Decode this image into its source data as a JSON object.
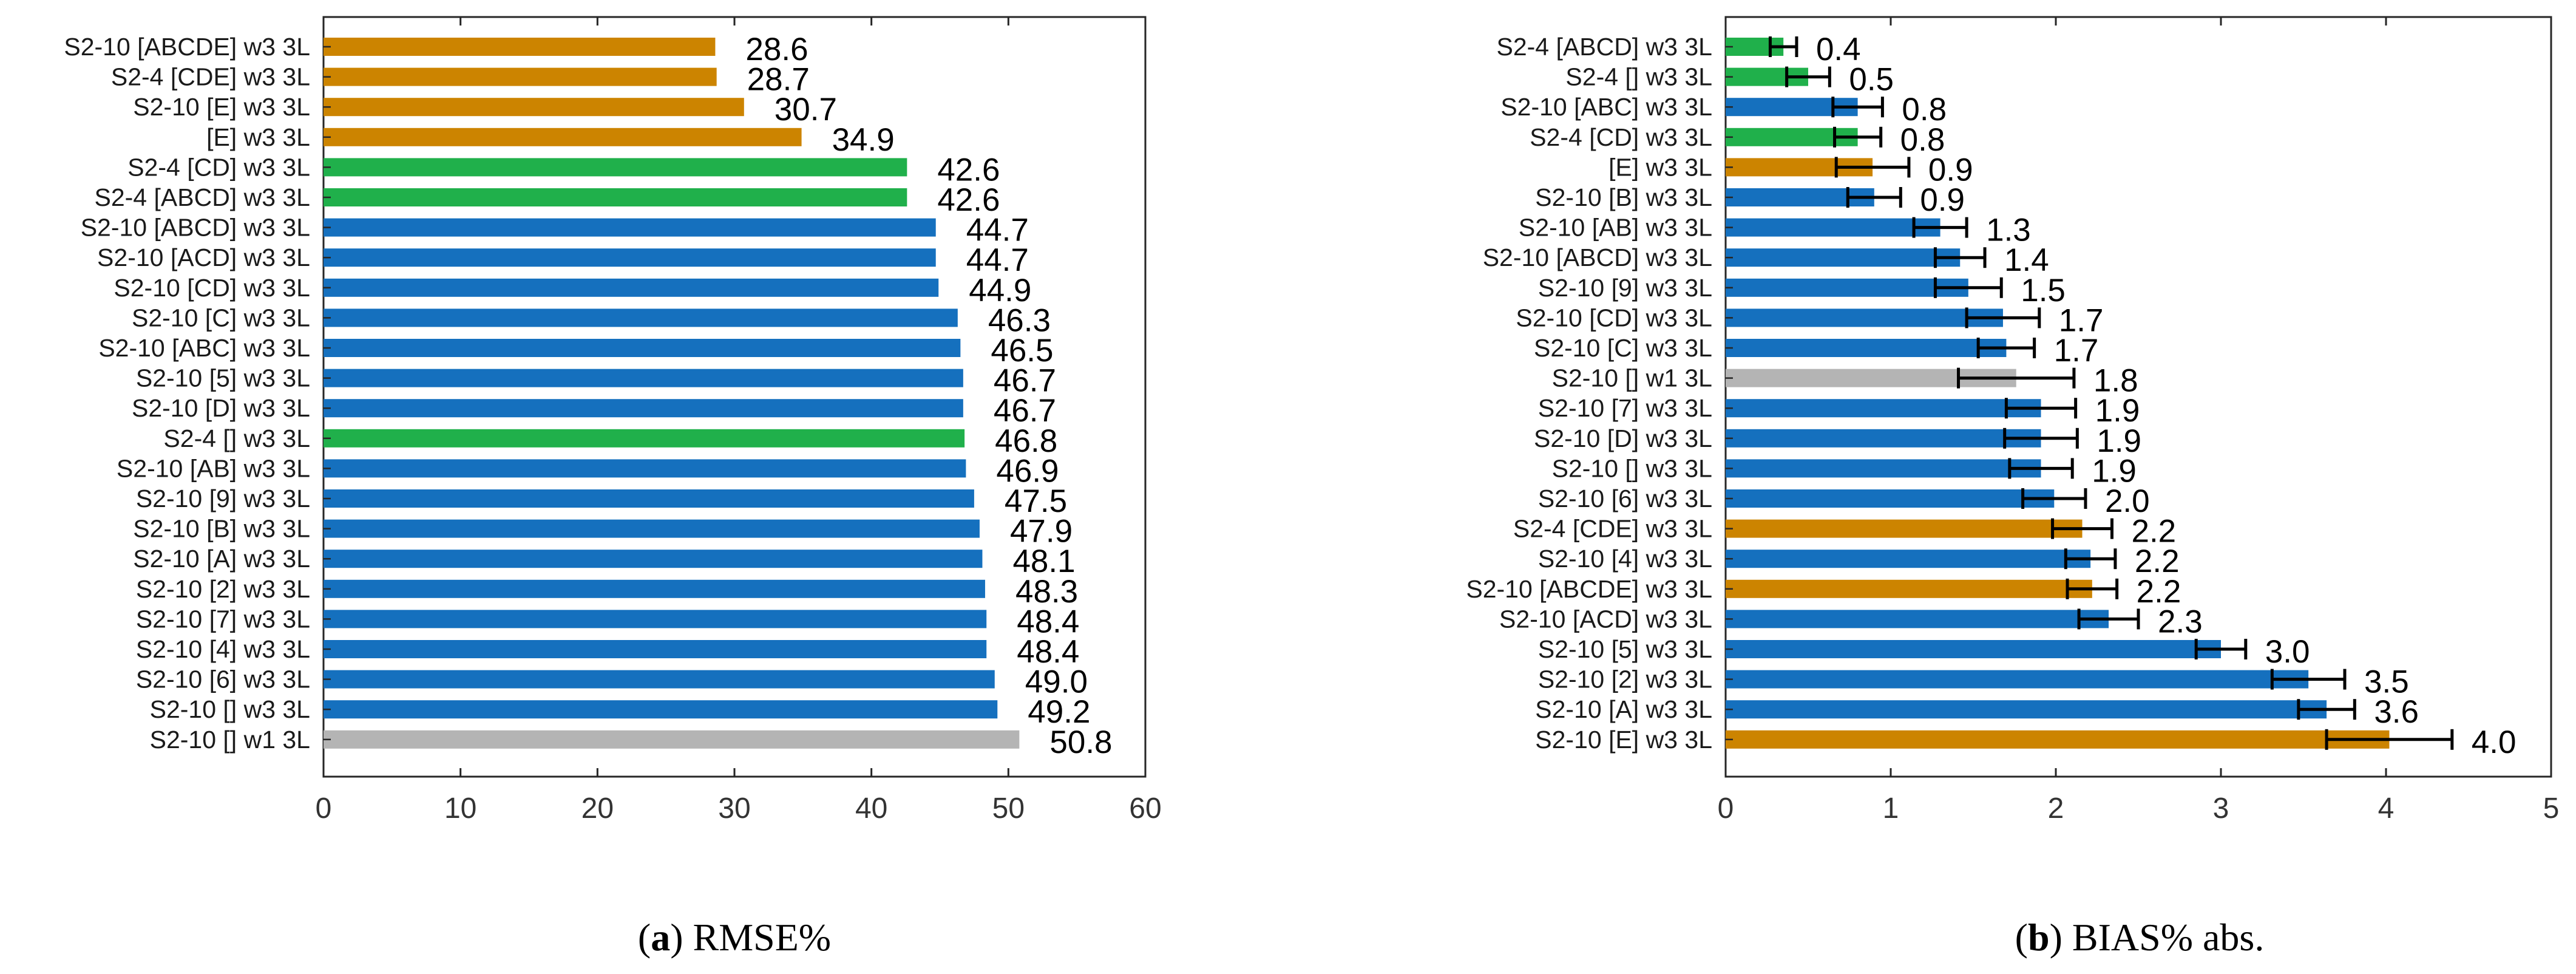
{
  "colors": {
    "orange": "#CC8400",
    "green": "#20B04B",
    "blue": "#1570BE",
    "gray": "#B4B4B4",
    "errorbar": "#000000",
    "axis": "#262626"
  },
  "chart_data": [
    {
      "type": "bar",
      "orientation": "horizontal",
      "caption_letter": "a",
      "caption_text": " RMSE%",
      "xlim": [
        0,
        60
      ],
      "xticks": [
        "0",
        "10",
        "20",
        "30",
        "40",
        "50",
        "60"
      ],
      "xtick_values": [
        0,
        10,
        20,
        30,
        40,
        50,
        60
      ],
      "grid": false,
      "categories": [
        "S2-10 [ABCDE] w3 3L",
        "S2-4 [CDE] w3 3L",
        "S2-10 [E] w3 3L",
        "[E] w3 3L",
        "S2-4 [CD] w3 3L",
        "S2-4 [ABCD] w3 3L",
        "S2-10 [ABCD] w3 3L",
        "S2-10 [ACD] w3 3L",
        "S2-10 [CD] w3 3L",
        "S2-10 [C] w3 3L",
        "S2-10 [ABC] w3 3L",
        "S2-10 [5] w3 3L",
        "S2-10 [D] w3 3L",
        "S2-4 [] w3 3L",
        "S2-10 [AB] w3 3L",
        "S2-10 [9] w3 3L",
        "S2-10 [B] w3 3L",
        "S2-10 [A] w3 3L",
        "S2-10 [2] w3 3L",
        "S2-10 [7] w3 3L",
        "S2-10 [4] w3 3L",
        "S2-10 [6] w3 3L",
        "S2-10 [] w3 3L",
        "S2-10 [] w1 3L"
      ],
      "values": [
        28.6,
        28.7,
        30.7,
        34.9,
        42.6,
        42.6,
        44.7,
        44.7,
        44.9,
        46.3,
        46.5,
        46.7,
        46.7,
        46.8,
        46.9,
        47.5,
        47.9,
        48.1,
        48.3,
        48.4,
        48.4,
        49.0,
        49.2,
        50.8
      ],
      "value_labels": [
        "28.6",
        "28.7",
        "30.7",
        "34.9",
        "42.6",
        "42.6",
        "44.7",
        "44.7",
        "44.9",
        "46.3",
        "46.5",
        "46.7",
        "46.7",
        "46.8",
        "46.9",
        "47.5",
        "47.9",
        "48.1",
        "48.3",
        "48.4",
        "48.4",
        "49.0",
        "49.2",
        "50.8"
      ],
      "bar_colors": [
        "orange",
        "orange",
        "orange",
        "orange",
        "green",
        "green",
        "blue",
        "blue",
        "blue",
        "blue",
        "blue",
        "blue",
        "blue",
        "green",
        "blue",
        "blue",
        "blue",
        "blue",
        "blue",
        "blue",
        "blue",
        "blue",
        "blue",
        "gray"
      ],
      "has_error_bars": false
    },
    {
      "type": "bar",
      "orientation": "horizontal",
      "caption_letter": "b",
      "caption_text": " BIAS% abs.",
      "xlim": [
        0,
        5
      ],
      "xticks": [
        "0",
        "1",
        "2",
        "3",
        "4",
        "5"
      ],
      "xtick_values": [
        0,
        1,
        2,
        3,
        4,
        5
      ],
      "grid": false,
      "categories": [
        "S2-4 [ABCD] w3 3L",
        "S2-4 [] w3 3L",
        "S2-10 [ABC] w3 3L",
        "S2-4 [CD] w3 3L",
        "[E] w3 3L",
        "S2-10 [B] w3 3L",
        "S2-10 [AB] w3 3L",
        "S2-10 [ABCD] w3 3L",
        "S2-10 [9] w3 3L",
        "S2-10 [CD] w3 3L",
        "S2-10 [C] w3 3L",
        "S2-10 [] w1 3L",
        "S2-10 [7] w3 3L",
        "S2-10 [D] w3 3L",
        "S2-10 [] w3 3L",
        "S2-10 [6] w3 3L",
        "S2-4 [CDE] w3 3L",
        "S2-10 [4] w3 3L",
        "S2-10 [ABCDE] w3 3L",
        "S2-10 [ACD] w3 3L",
        "S2-10 [5] w3 3L",
        "S2-10 [2] w3 3L",
        "S2-10 [A] w3 3L",
        "S2-10 [E] w3 3L"
      ],
      "values": [
        0.35,
        0.5,
        0.8,
        0.8,
        0.89,
        0.9,
        1.3,
        1.42,
        1.47,
        1.68,
        1.7,
        1.76,
        1.91,
        1.91,
        1.91,
        1.99,
        2.16,
        2.21,
        2.22,
        2.32,
        3.0,
        3.53,
        3.64,
        4.02
      ],
      "error": [
        0.08,
        0.13,
        0.15,
        0.14,
        0.22,
        0.16,
        0.16,
        0.15,
        0.2,
        0.22,
        0.17,
        0.35,
        0.21,
        0.22,
        0.19,
        0.19,
        0.18,
        0.15,
        0.15,
        0.18,
        0.15,
        0.22,
        0.17,
        0.38
      ],
      "value_labels": [
        "0.4",
        "0.5",
        "0.8",
        "0.8",
        "0.9",
        "0.9",
        "1.3",
        "1.4",
        "1.5",
        "1.7",
        "1.7",
        "1.8",
        "1.9",
        "1.9",
        "1.9",
        "2.0",
        "2.2",
        "2.2",
        "2.2",
        "2.3",
        "3.0",
        "3.5",
        "3.6",
        "4.0"
      ],
      "bar_colors": [
        "green",
        "green",
        "blue",
        "green",
        "orange",
        "blue",
        "blue",
        "blue",
        "blue",
        "blue",
        "blue",
        "gray",
        "blue",
        "blue",
        "blue",
        "blue",
        "orange",
        "blue",
        "orange",
        "blue",
        "blue",
        "blue",
        "blue",
        "orange"
      ],
      "has_error_bars": true
    }
  ]
}
